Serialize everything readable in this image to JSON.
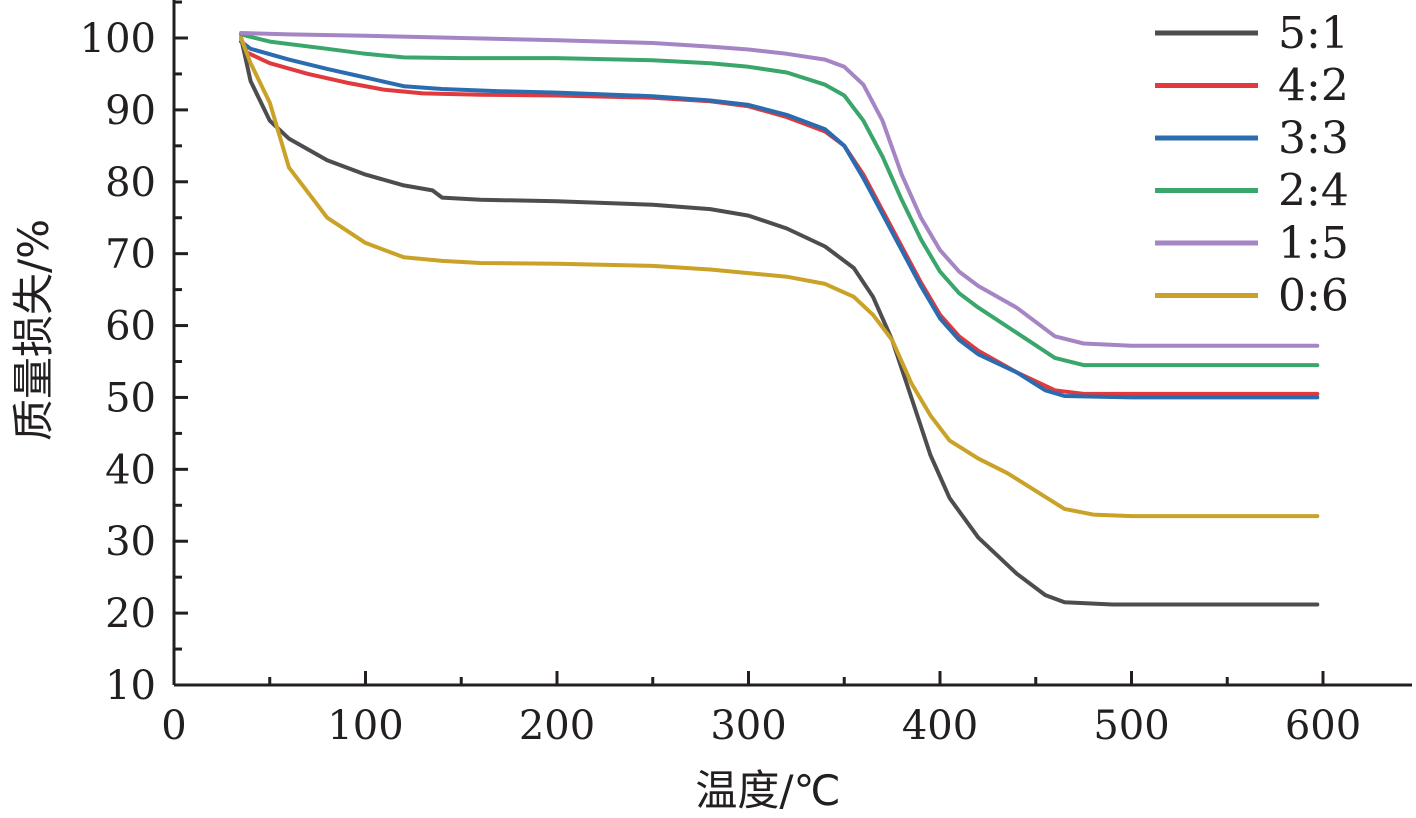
{
  "chart_data": {
    "type": "line",
    "title": "",
    "xlabel": "温度/℃",
    "ylabel": "质量损失/%",
    "xlim": [
      0,
      650
    ],
    "ylim": [
      10,
      105
    ],
    "xticks": [
      0,
      100,
      200,
      300,
      400,
      500,
      600
    ],
    "yticks": [
      10,
      20,
      30,
      40,
      50,
      60,
      70,
      80,
      90,
      100
    ],
    "grid": false,
    "legend_position": "top-right",
    "series": [
      {
        "name": "5:1",
        "color": "#4d4d4f",
        "points": [
          [
            35,
            100
          ],
          [
            40,
            94
          ],
          [
            50,
            88.5
          ],
          [
            60,
            86
          ],
          [
            80,
            83
          ],
          [
            100,
            81
          ],
          [
            120,
            79.5
          ],
          [
            135,
            78.8
          ],
          [
            140,
            77.8
          ],
          [
            160,
            77.5
          ],
          [
            200,
            77.3
          ],
          [
            250,
            76.8
          ],
          [
            280,
            76.2
          ],
          [
            300,
            75.3
          ],
          [
            320,
            73.5
          ],
          [
            340,
            71
          ],
          [
            355,
            68
          ],
          [
            365,
            64
          ],
          [
            375,
            58
          ],
          [
            385,
            50
          ],
          [
            395,
            42
          ],
          [
            405,
            36
          ],
          [
            420,
            30.5
          ],
          [
            440,
            25.5
          ],
          [
            455,
            22.5
          ],
          [
            465,
            21.5
          ],
          [
            490,
            21.2
          ],
          [
            550,
            21.2
          ],
          [
            597,
            21.2
          ]
        ]
      },
      {
        "name": "4:2",
        "color": "#e03a3e",
        "points": [
          [
            35,
            100
          ],
          [
            38,
            98
          ],
          [
            50,
            96.5
          ],
          [
            70,
            95
          ],
          [
            90,
            93.8
          ],
          [
            110,
            92.8
          ],
          [
            130,
            92.3
          ],
          [
            160,
            92.1
          ],
          [
            200,
            92
          ],
          [
            250,
            91.7
          ],
          [
            280,
            91.2
          ],
          [
            300,
            90.5
          ],
          [
            320,
            89
          ],
          [
            340,
            87
          ],
          [
            350,
            85
          ],
          [
            360,
            81
          ],
          [
            370,
            76
          ],
          [
            380,
            71
          ],
          [
            390,
            66
          ],
          [
            400,
            61.5
          ],
          [
            410,
            58.5
          ],
          [
            420,
            56.5
          ],
          [
            440,
            53.5
          ],
          [
            460,
            51
          ],
          [
            475,
            50.5
          ],
          [
            500,
            50.5
          ],
          [
            550,
            50.5
          ],
          [
            597,
            50.5
          ]
        ]
      },
      {
        "name": "3:3",
        "color": "#2b6cb0",
        "points": [
          [
            35,
            99.5
          ],
          [
            40,
            98.5
          ],
          [
            60,
            97
          ],
          [
            80,
            95.7
          ],
          [
            100,
            94.5
          ],
          [
            120,
            93.3
          ],
          [
            140,
            92.9
          ],
          [
            170,
            92.6
          ],
          [
            200,
            92.4
          ],
          [
            250,
            91.9
          ],
          [
            280,
            91.3
          ],
          [
            300,
            90.7
          ],
          [
            320,
            89.3
          ],
          [
            340,
            87.3
          ],
          [
            350,
            85
          ],
          [
            360,
            80.5
          ],
          [
            370,
            75.5
          ],
          [
            380,
            70.5
          ],
          [
            390,
            65.5
          ],
          [
            400,
            61
          ],
          [
            410,
            58
          ],
          [
            420,
            56
          ],
          [
            440,
            53.5
          ],
          [
            455,
            51
          ],
          [
            465,
            50.2
          ],
          [
            500,
            50
          ],
          [
            550,
            50
          ],
          [
            597,
            50
          ]
        ]
      },
      {
        "name": "2:4",
        "color": "#3aa66b",
        "points": [
          [
            35,
            100.5
          ],
          [
            50,
            99.5
          ],
          [
            80,
            98.5
          ],
          [
            100,
            97.8
          ],
          [
            120,
            97.3
          ],
          [
            150,
            97.2
          ],
          [
            200,
            97.2
          ],
          [
            250,
            96.9
          ],
          [
            280,
            96.5
          ],
          [
            300,
            96
          ],
          [
            320,
            95.2
          ],
          [
            340,
            93.5
          ],
          [
            350,
            92
          ],
          [
            360,
            88.5
          ],
          [
            370,
            83.5
          ],
          [
            380,
            77.5
          ],
          [
            390,
            72
          ],
          [
            400,
            67.5
          ],
          [
            410,
            64.5
          ],
          [
            420,
            62.5
          ],
          [
            440,
            59
          ],
          [
            460,
            55.5
          ],
          [
            475,
            54.5
          ],
          [
            500,
            54.5
          ],
          [
            550,
            54.5
          ],
          [
            597,
            54.5
          ]
        ]
      },
      {
        "name": "1:5",
        "color": "#a585c4",
        "points": [
          [
            35,
            100.7
          ],
          [
            60,
            100.5
          ],
          [
            100,
            100.3
          ],
          [
            150,
            100
          ],
          [
            200,
            99.7
          ],
          [
            250,
            99.3
          ],
          [
            280,
            98.8
          ],
          [
            300,
            98.4
          ],
          [
            320,
            97.8
          ],
          [
            340,
            97
          ],
          [
            350,
            96
          ],
          [
            360,
            93.5
          ],
          [
            370,
            88.5
          ],
          [
            380,
            81
          ],
          [
            390,
            75
          ],
          [
            400,
            70.5
          ],
          [
            410,
            67.5
          ],
          [
            420,
            65.5
          ],
          [
            440,
            62.5
          ],
          [
            460,
            58.5
          ],
          [
            475,
            57.5
          ],
          [
            500,
            57.2
          ],
          [
            550,
            57.2
          ],
          [
            597,
            57.2
          ]
        ]
      },
      {
        "name": "0:6",
        "color": "#c9a227",
        "points": [
          [
            35,
            100
          ],
          [
            40,
            96.5
          ],
          [
            50,
            91
          ],
          [
            60,
            82
          ],
          [
            70,
            78.5
          ],
          [
            80,
            75
          ],
          [
            100,
            71.5
          ],
          [
            120,
            69.5
          ],
          [
            140,
            69
          ],
          [
            160,
            68.7
          ],
          [
            200,
            68.6
          ],
          [
            250,
            68.3
          ],
          [
            280,
            67.8
          ],
          [
            300,
            67.3
          ],
          [
            320,
            66.8
          ],
          [
            340,
            65.8
          ],
          [
            355,
            64
          ],
          [
            365,
            61.5
          ],
          [
            375,
            58
          ],
          [
            385,
            52
          ],
          [
            395,
            47.5
          ],
          [
            405,
            44
          ],
          [
            420,
            41.5
          ],
          [
            435,
            39.5
          ],
          [
            450,
            37
          ],
          [
            465,
            34.5
          ],
          [
            480,
            33.7
          ],
          [
            500,
            33.5
          ],
          [
            550,
            33.5
          ],
          [
            597,
            33.5
          ]
        ]
      }
    ]
  }
}
